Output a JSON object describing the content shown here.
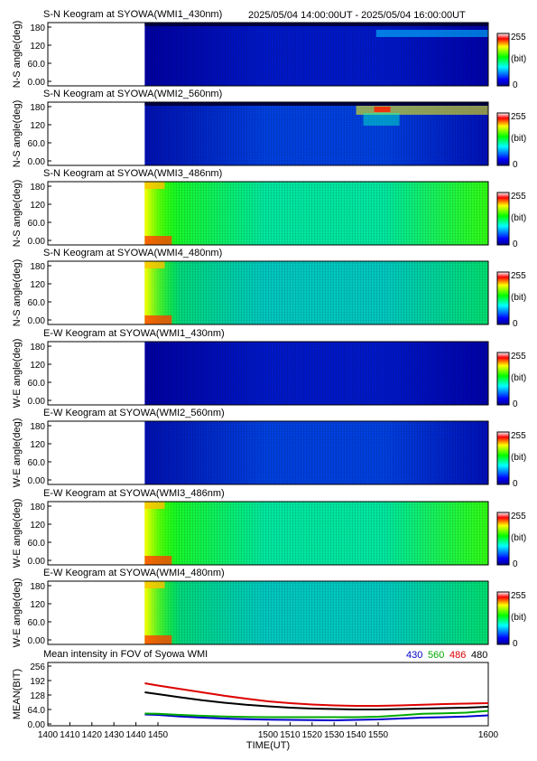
{
  "header": {
    "time_range": "2025/05/04 14:00:00UT - 2025/05/04 16:00:00UT"
  },
  "chart_data": [
    {
      "type": "heatmap",
      "title": "S-N Keogram at SYOWA(WMI1_430nm)",
      "ylabel": "N-S angle(deg)",
      "yticks": [
        "180",
        "120",
        "60.0",
        "0.00"
      ],
      "ylim": [
        0,
        180
      ],
      "colorbar": {
        "max": "255",
        "unit": "(bit)",
        "min": "0"
      },
      "xlim": [
        1400,
        1600
      ],
      "data_start": 1444,
      "intensity": "low-blue",
      "edge_bands": "dark-top",
      "late_feature": "cyan patches near 180 after 1545"
    },
    {
      "type": "heatmap",
      "title": "S-N Keogram at SYOWA(WMI2_560nm)",
      "ylabel": "N-S angle(deg)",
      "yticks": [
        "180",
        "120",
        "60.0",
        "0.00"
      ],
      "ylim": [
        0,
        180
      ],
      "colorbar": {
        "max": "255",
        "unit": "(bit)",
        "min": "0"
      },
      "xlim": [
        1400,
        1600
      ],
      "data_start": 1444,
      "intensity": "blue",
      "edge_bands": "dark-top",
      "late_feature": "yellow-red aurora near 130-180 after 1540"
    },
    {
      "type": "heatmap",
      "title": "S-N Keogram at SYOWA(WMI3_486nm)",
      "ylabel": "N-S angle(deg)",
      "yticks": [
        "180",
        "120",
        "60.0",
        "0.00"
      ],
      "ylim": [
        0,
        180
      ],
      "colorbar": {
        "max": "255",
        "unit": "(bit)",
        "min": "0"
      },
      "xlim": [
        1400,
        1600
      ],
      "data_start": 1444,
      "intensity": "green",
      "edge_bands": "bright-start",
      "late_feature": "none"
    },
    {
      "type": "heatmap",
      "title": "S-N Keogram at SYOWA(WMI4_480nm)",
      "ylabel": "N-S angle(deg)",
      "yticks": [
        "180",
        "120",
        "60.0",
        "0.00"
      ],
      "ylim": [
        0,
        180
      ],
      "colorbar": {
        "max": "255",
        "unit": "(bit)",
        "min": "0"
      },
      "xlim": [
        1400,
        1600
      ],
      "data_start": 1444,
      "intensity": "green-cyan",
      "edge_bands": "bright-start",
      "late_feature": "none"
    },
    {
      "type": "heatmap",
      "title": "E-W Keogram at SYOWA(WMI1_430nm)",
      "ylabel": "W-E angle(deg)",
      "yticks": [
        "180",
        "120",
        "60.0",
        "0.00"
      ],
      "ylim": [
        0,
        180
      ],
      "colorbar": {
        "max": "255",
        "unit": "(bit)",
        "min": "0"
      },
      "xlim": [
        1400,
        1600
      ],
      "data_start": 1444,
      "intensity": "low-blue",
      "edge_bands": "none",
      "late_feature": "none"
    },
    {
      "type": "heatmap",
      "title": "E-W Keogram at SYOWA(WMI2_560nm)",
      "ylabel": "W-E angle(deg)",
      "yticks": [
        "180",
        "120",
        "60.0",
        "0.00"
      ],
      "ylim": [
        0,
        180
      ],
      "colorbar": {
        "max": "255",
        "unit": "(bit)",
        "min": "0"
      },
      "xlim": [
        1400,
        1600
      ],
      "data_start": 1444,
      "intensity": "blue",
      "edge_bands": "none",
      "late_feature": "none"
    },
    {
      "type": "heatmap",
      "title": "E-W Keogram at SYOWA(WMI3_486nm)",
      "ylabel": "W-E angle(deg)",
      "yticks": [
        "180",
        "120",
        "60.0",
        "0.00"
      ],
      "ylim": [
        0,
        180
      ],
      "colorbar": {
        "max": "255",
        "unit": "(bit)",
        "min": "0"
      },
      "xlim": [
        1400,
        1600
      ],
      "data_start": 1444,
      "intensity": "green",
      "edge_bands": "bright-start",
      "late_feature": "none"
    },
    {
      "type": "heatmap",
      "title": "E-W Keogram at SYOWA(WMI4_480nm)",
      "ylabel": "W-E angle(deg)",
      "yticks": [
        "180",
        "120",
        "60.0",
        "0.00"
      ],
      "ylim": [
        0,
        180
      ],
      "colorbar": {
        "max": "255",
        "unit": "(bit)",
        "min": "0"
      },
      "xlim": [
        1400,
        1600
      ],
      "data_start": 1444,
      "intensity": "green-cyan",
      "edge_bands": "bright-start",
      "late_feature": "none"
    },
    {
      "type": "line",
      "title": "Mean intensity in FOV of Syowa WMI",
      "ylabel": "MEAN(BIT)",
      "xlabel": "TIME(UT)",
      "yticks": [
        "256",
        "192",
        "128",
        "64.0",
        "0.00"
      ],
      "ylim": [
        0,
        256
      ],
      "xticks": [
        "1400",
        "1410",
        "1420",
        "1430",
        "1440",
        "1450",
        "1500",
        "1510",
        "1520",
        "1530",
        "1540",
        "1550",
        "1600"
      ],
      "xlim": [
        1400,
        1600
      ],
      "series": [
        {
          "name": "430",
          "color": "#0000cc",
          "x": [
            1444,
            1450,
            1460,
            1470,
            1480,
            1490,
            1500,
            1510,
            1520,
            1530,
            1540,
            1550,
            1560,
            1570,
            1580,
            1590,
            1600
          ],
          "y": [
            42,
            40,
            33,
            28,
            24,
            21,
            19,
            18,
            17,
            16,
            18,
            20,
            24,
            28,
            30,
            33,
            38
          ]
        },
        {
          "name": "560",
          "color": "#00aa00",
          "x": [
            1444,
            1450,
            1460,
            1470,
            1480,
            1490,
            1500,
            1510,
            1520,
            1530,
            1540,
            1550,
            1560,
            1570,
            1580,
            1590,
            1600
          ],
          "y": [
            46,
            45,
            40,
            36,
            33,
            31,
            30,
            30,
            30,
            30,
            30,
            32,
            38,
            45,
            47,
            50,
            58
          ]
        },
        {
          "name": "486",
          "color": "#dd0000",
          "x": [
            1444,
            1450,
            1460,
            1470,
            1480,
            1490,
            1500,
            1510,
            1520,
            1530,
            1540,
            1550,
            1560,
            1570,
            1580,
            1590,
            1600
          ],
          "y": [
            180,
            170,
            155,
            140,
            125,
            112,
            100,
            92,
            86,
            82,
            80,
            80,
            82,
            85,
            88,
            90,
            92
          ]
        },
        {
          "name": "480",
          "color": "#000000",
          "x": [
            1444,
            1450,
            1460,
            1470,
            1480,
            1490,
            1500,
            1510,
            1520,
            1530,
            1540,
            1550,
            1560,
            1570,
            1580,
            1590,
            1600
          ],
          "y": [
            140,
            132,
            118,
            105,
            94,
            85,
            78,
            72,
            68,
            66,
            64,
            64,
            66,
            68,
            70,
            72,
            76
          ]
        }
      ]
    }
  ]
}
